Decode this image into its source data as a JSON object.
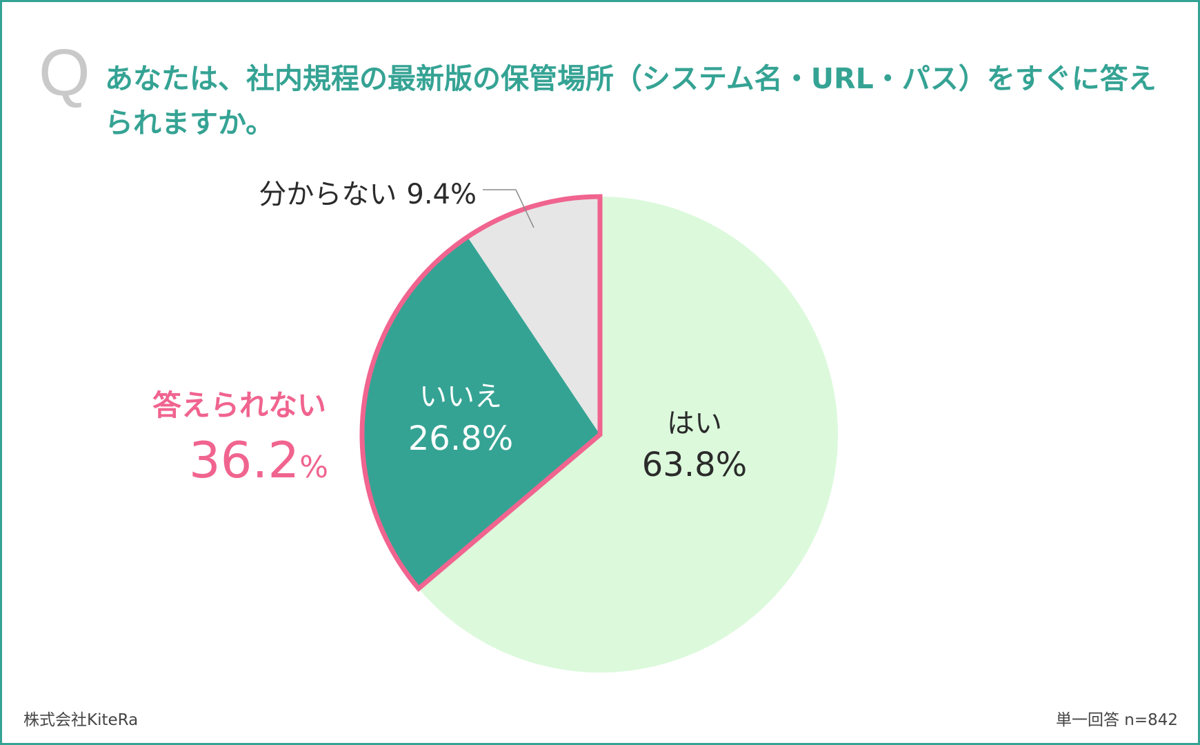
{
  "question": {
    "mark": "Q",
    "text": "あなたは、社内規程の最新版の保管場所（システム名・URL・パス）をすぐに答えられますか。"
  },
  "chart_data": {
    "type": "pie",
    "slices": [
      {
        "label": "はい",
        "value": 63.8,
        "value_text": "63.8%",
        "color": "#dcf9dc"
      },
      {
        "label": "いいえ",
        "value": 26.8,
        "value_text": "26.8%",
        "color": "#35a394"
      },
      {
        "label": "分からない",
        "value": 9.4,
        "value_text": "9.4%",
        "color": "#e6e6e6"
      }
    ],
    "group": {
      "label": "答えられない",
      "value": 36.2,
      "value_number": "36.2",
      "value_unit": "%",
      "color": "#f0648f"
    }
  },
  "footer": {
    "source": "株式会社KiteRa",
    "note": "単一回答 n=842"
  }
}
